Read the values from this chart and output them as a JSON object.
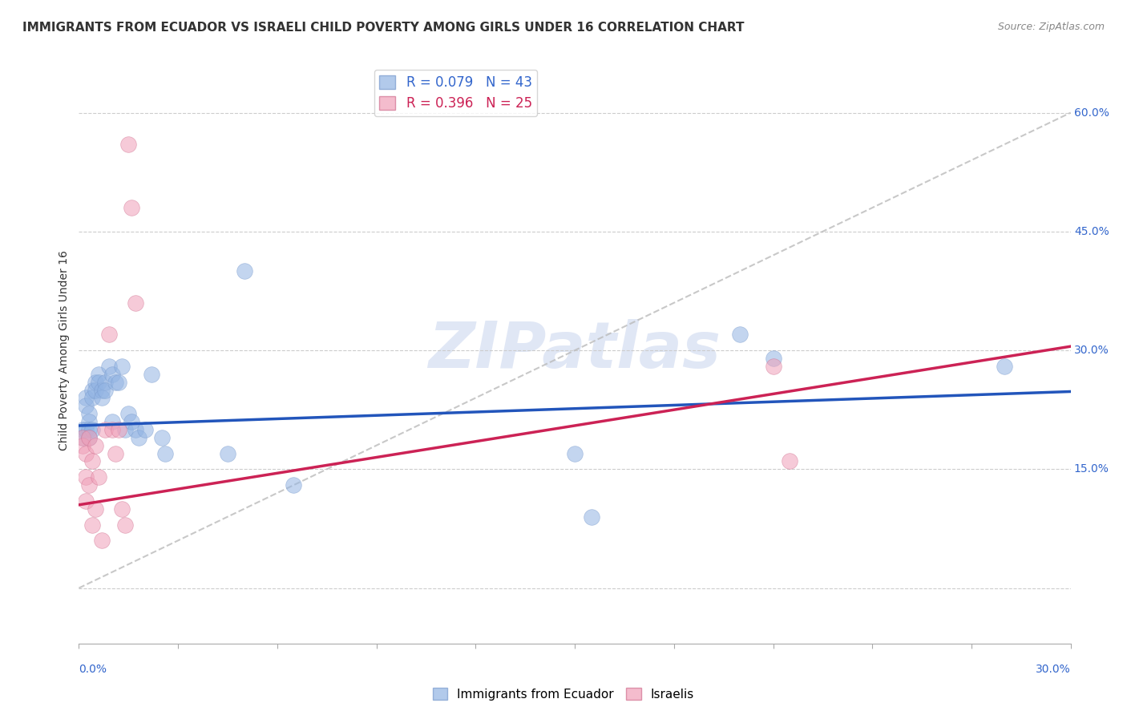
{
  "title": "IMMIGRANTS FROM ECUADOR VS ISRAELI CHILD POVERTY AMONG GIRLS UNDER 16 CORRELATION CHART",
  "source": "Source: ZipAtlas.com",
  "ylabel": "Child Poverty Among Girls Under 16",
  "right_yticks": [
    0.0,
    0.15,
    0.3,
    0.45,
    0.6
  ],
  "right_ytick_labels": [
    "",
    "15.0%",
    "30.0%",
    "45.0%",
    "60.0%"
  ],
  "xlim": [
    0.0,
    0.3
  ],
  "ylim": [
    -0.07,
    0.67
  ],
  "legend1_label": "R = 0.079   N = 43",
  "legend2_label": "R = 0.396   N = 25",
  "legend1_color": "#92b4e3",
  "legend2_color": "#f0a0b8",
  "watermark": "ZIPatlas",
  "blue_scatter_x": [
    0.001,
    0.001,
    0.002,
    0.002,
    0.002,
    0.003,
    0.003,
    0.003,
    0.003,
    0.004,
    0.004,
    0.004,
    0.005,
    0.005,
    0.006,
    0.006,
    0.007,
    0.007,
    0.008,
    0.008,
    0.009,
    0.01,
    0.01,
    0.011,
    0.012,
    0.013,
    0.014,
    0.015,
    0.016,
    0.017,
    0.018,
    0.02,
    0.022,
    0.025,
    0.026,
    0.045,
    0.05,
    0.065,
    0.15,
    0.155,
    0.2,
    0.21,
    0.28
  ],
  "blue_scatter_y": [
    0.2,
    0.19,
    0.24,
    0.23,
    0.2,
    0.22,
    0.21,
    0.2,
    0.19,
    0.25,
    0.24,
    0.2,
    0.26,
    0.25,
    0.27,
    0.26,
    0.25,
    0.24,
    0.26,
    0.25,
    0.28,
    0.27,
    0.21,
    0.26,
    0.26,
    0.28,
    0.2,
    0.22,
    0.21,
    0.2,
    0.19,
    0.2,
    0.27,
    0.19,
    0.17,
    0.17,
    0.4,
    0.13,
    0.17,
    0.09,
    0.32,
    0.29,
    0.28
  ],
  "pink_scatter_x": [
    0.001,
    0.001,
    0.002,
    0.002,
    0.002,
    0.003,
    0.003,
    0.004,
    0.004,
    0.005,
    0.005,
    0.006,
    0.007,
    0.008,
    0.009,
    0.01,
    0.011,
    0.012,
    0.013,
    0.014,
    0.015,
    0.016,
    0.017,
    0.21,
    0.215
  ],
  "pink_scatter_y": [
    0.19,
    0.18,
    0.17,
    0.14,
    0.11,
    0.19,
    0.13,
    0.16,
    0.08,
    0.18,
    0.1,
    0.14,
    0.06,
    0.2,
    0.32,
    0.2,
    0.17,
    0.2,
    0.1,
    0.08,
    0.56,
    0.48,
    0.36,
    0.28,
    0.16
  ],
  "blue_line_x": [
    0.0,
    0.3
  ],
  "blue_line_y": [
    0.205,
    0.248
  ],
  "pink_line_x": [
    0.0,
    0.3
  ],
  "pink_line_y": [
    0.105,
    0.305
  ],
  "diag_line_x": [
    0.0,
    0.3
  ],
  "diag_line_y": [
    0.0,
    0.6
  ]
}
